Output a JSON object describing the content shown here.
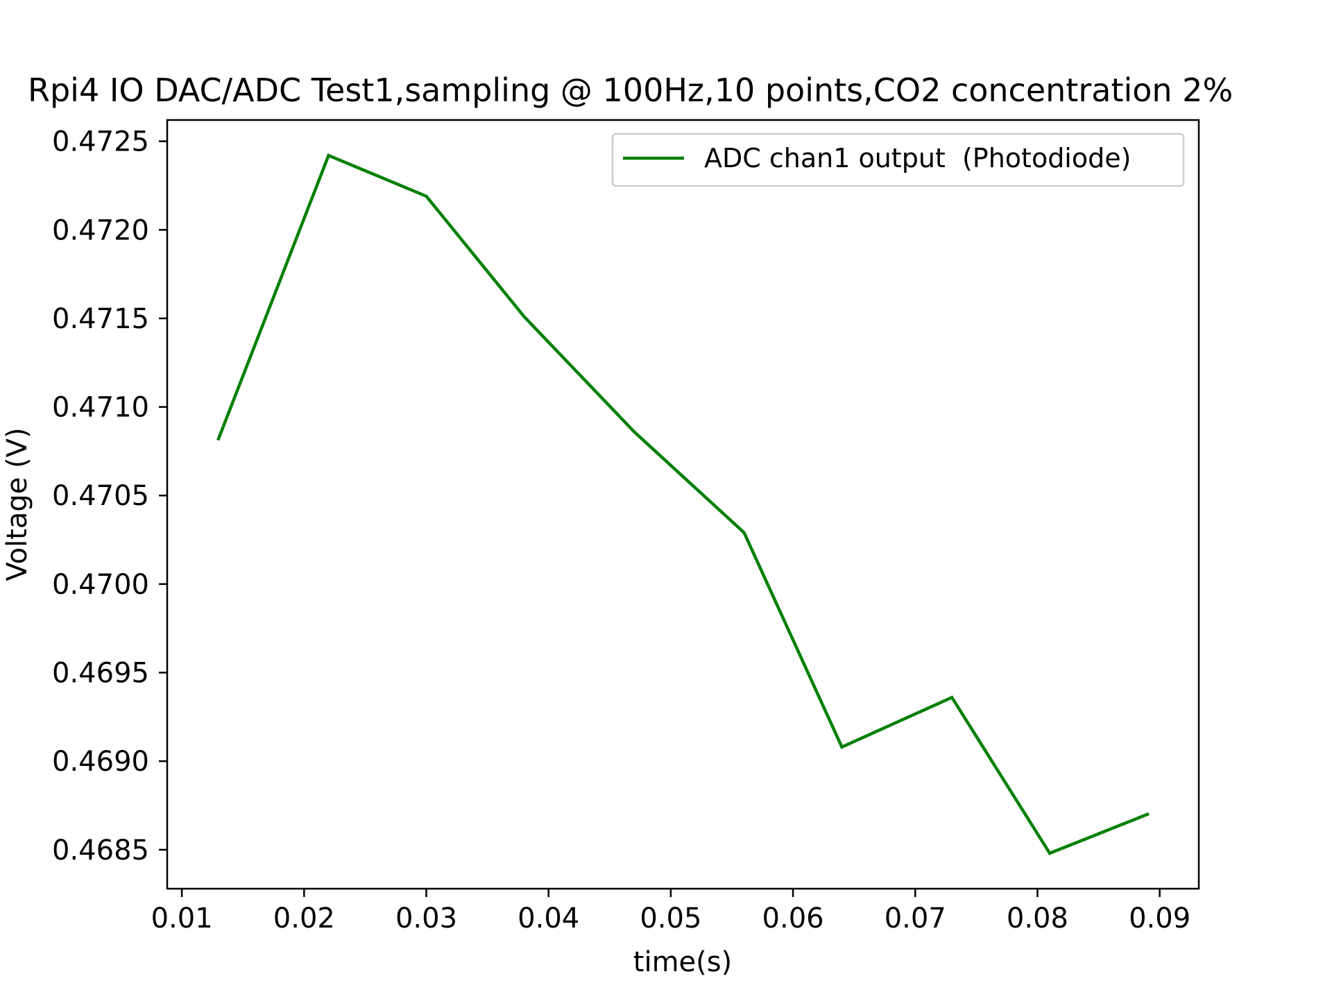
{
  "chart_data": {
    "type": "line",
    "title": "Rpi4 IO DAC/ADC Test1,sampling @ 100Hz,10 points,CO2 concentration 2%",
    "xlabel": "time(s)",
    "ylabel": "Voltage (V)",
    "xlim": [
      0.0088,
      0.0932
    ],
    "ylim": [
      0.46828,
      0.47262
    ],
    "x_ticks": [
      0.01,
      0.02,
      0.03,
      0.04,
      0.05,
      0.06,
      0.07,
      0.08,
      0.09
    ],
    "x_tick_labels": [
      "0.01",
      "0.02",
      "0.03",
      "0.04",
      "0.05",
      "0.06",
      "0.07",
      "0.08",
      "0.09"
    ],
    "y_ticks": [
      0.4685,
      0.469,
      0.4695,
      0.47,
      0.4705,
      0.471,
      0.4715,
      0.472,
      0.4725
    ],
    "y_tick_labels": [
      "0.4685",
      "0.4690",
      "0.4695",
      "0.4700",
      "0.4705",
      "0.4710",
      "0.4715",
      "0.4720",
      "0.4725"
    ],
    "grid": false,
    "legend_position": "upper-right",
    "series": [
      {
        "name": "ADC chan1 output  (Photodiode)",
        "color": "#008000",
        "x": [
          0.013,
          0.022,
          0.03,
          0.038,
          0.047,
          0.056,
          0.064,
          0.073,
          0.081,
          0.089
        ],
        "y": [
          0.47082,
          0.47242,
          0.47219,
          0.47151,
          0.47086,
          0.47029,
          0.46908,
          0.46936,
          0.46848,
          0.4687
        ]
      }
    ]
  }
}
